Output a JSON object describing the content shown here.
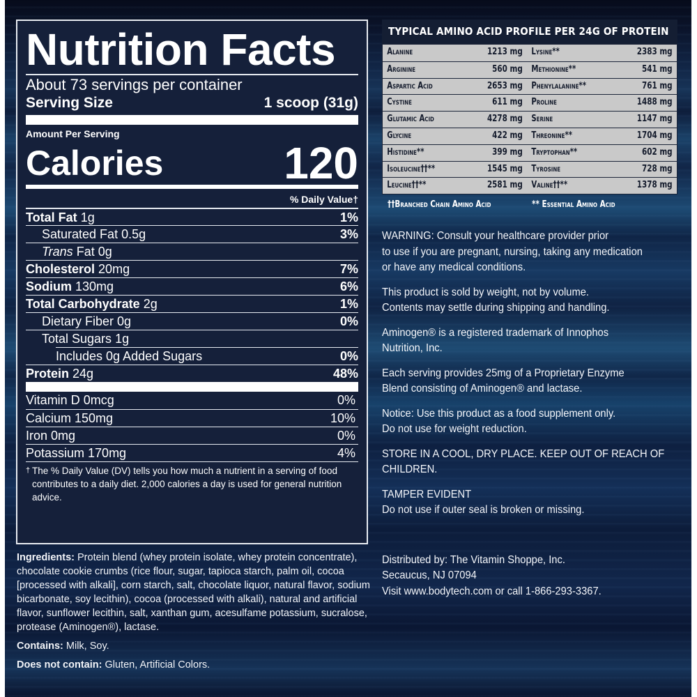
{
  "nutrition_facts": {
    "title": "Nutrition Facts",
    "servings_per_container": "About 73 servings per container",
    "serving_size_label": "Serving Size",
    "serving_size_value": "1 scoop (31g)",
    "amount_per_serving": "Amount Per Serving",
    "calories_label": "Calories",
    "calories_value": "120",
    "daily_value_header": "% Daily Value†",
    "nutrients": [
      {
        "name": "Total Fat",
        "amount": "1g",
        "dv": "1%"
      },
      {
        "name": "Saturated Fat",
        "amount": "0.5g",
        "dv": "3%"
      },
      {
        "name_italic": "Trans",
        "name": "Fat",
        "amount": "0g",
        "dv": ""
      },
      {
        "name": "Cholesterol",
        "amount": "20mg",
        "dv": "7%"
      },
      {
        "name": "Sodium",
        "amount": "130mg",
        "dv": "6%"
      },
      {
        "name": "Total Carbohydrate",
        "amount": "2g",
        "dv": "1%"
      },
      {
        "name": "Dietary Fiber",
        "amount": "0g",
        "dv": "0%"
      },
      {
        "name": "Total Sugars",
        "amount": "1g",
        "dv": ""
      },
      {
        "name": "Includes 0g Added Sugars",
        "amount": "",
        "dv": "0%"
      },
      {
        "name": "Protein",
        "amount": "24g",
        "dv": "48%"
      }
    ],
    "vitamins": [
      {
        "label": "Vitamin D 0mcg",
        "dv": "0%"
      },
      {
        "label": "Calcium 150mg",
        "dv": "10%"
      },
      {
        "label": "Iron 0mg",
        "dv": "0%"
      },
      {
        "label": "Potassium 170mg",
        "dv": "4%"
      }
    ],
    "footnote_symbol": "†",
    "footnote": "The % Daily Value (DV) tells you how much a nutrient in a serving of food contributes to a daily diet. 2,000 calories a day is used for general nutrition advice."
  },
  "ingredients": {
    "label": "Ingredients:",
    "text": "Protein blend (whey protein isolate, whey protein concentrate), chocolate cookie crumbs (rice flour, sugar, tapioca starch, palm oil, cocoa [processed with alkali], corn starch, salt, chocolate liquor, natural flavor, sodium bicarbonate, soy lecithin), cocoa (processed with alkali), natural and artificial flavor, sunflower lecithin, salt, xanthan gum, acesulfame potassium, sucralose, protease (Aminogen®), lactase.",
    "contains_label": "Contains:",
    "contains": "Milk, Soy.",
    "not_contain_label": "Does not contain:",
    "not_contain": "Gluten, Artificial Colors."
  },
  "amino_profile": {
    "title": "TYPICAL AMINO ACID PROFILE PER 24G OF PROTEIN",
    "rows": [
      {
        "left_name": "Alanine",
        "left_value": "1213 mg",
        "right_name": "Lysine**",
        "right_value": "2383 mg"
      },
      {
        "left_name": "Arginine",
        "left_value": "560 mg",
        "right_name": "Methionine**",
        "right_value": "541 mg"
      },
      {
        "left_name": "Aspartic Acid",
        "left_value": "2653 mg",
        "right_name": "Phenylalanine**",
        "right_value": "761 mg"
      },
      {
        "left_name": "Cystine",
        "left_value": "611 mg",
        "right_name": "Proline",
        "right_value": "1488 mg"
      },
      {
        "left_name": "Glutamic Acid",
        "left_value": "4278 mg",
        "right_name": "Serine",
        "right_value": "1147 mg"
      },
      {
        "left_name": "Glycine",
        "left_value": "422 mg",
        "right_name": "Threonine**",
        "right_value": "1704 mg"
      },
      {
        "left_name": "Histidine**",
        "left_value": "399 mg",
        "right_name": "Tryptophan**",
        "right_value": "602 mg"
      },
      {
        "left_name": "Isoleucine††**",
        "left_value": "1545 mg",
        "right_name": "Tyrosine",
        "right_value": "728 mg"
      },
      {
        "left_name": "Leucine††**",
        "left_value": "2581 mg",
        "right_name": "Valine††**",
        "right_value": "1378 mg"
      }
    ],
    "legend_bcaa": "††Branched Chain Amino Acid",
    "legend_essential": "** Essential Amino Acid"
  },
  "notices": {
    "warning": [
      "WARNING: Consult your healthcare provider prior",
      "to use if you are pregnant, nursing, taking any medication",
      "or have any medical conditions."
    ],
    "weight": [
      "This product is sold by weight, not by volume.",
      "Contents may settle during shipping and handling."
    ],
    "trademark": [
      "Aminogen® is a registered trademark of Innophos",
      "Nutrition, Inc."
    ],
    "enzyme": [
      "Each serving provides 25mg of a Proprietary Enzyme",
      "Blend consisting of Aminogen® and lactase."
    ],
    "notice": [
      "Notice: Use this product as a food supplement only.",
      "Do not use for weight reduction."
    ],
    "storage": [
      "STORE IN A COOL, DRY PLACE. KEEP OUT OF REACH OF",
      "CHILDREN."
    ],
    "tamper": [
      "TAMPER EVIDENT",
      "Do not use if outer seal is broken or missing."
    ],
    "distributor": [
      "Distributed by: The Vitamin Shoppe, Inc.",
      "Secaucus, NJ 07094",
      "Visit www.bodytech.com or call 1-866-293-3367."
    ]
  },
  "colors": {
    "panel_bg": "#15203a",
    "page_bg": "#0f1e3c",
    "amino_row_bg": "#c9c9c9",
    "text": "#ffffff"
  }
}
